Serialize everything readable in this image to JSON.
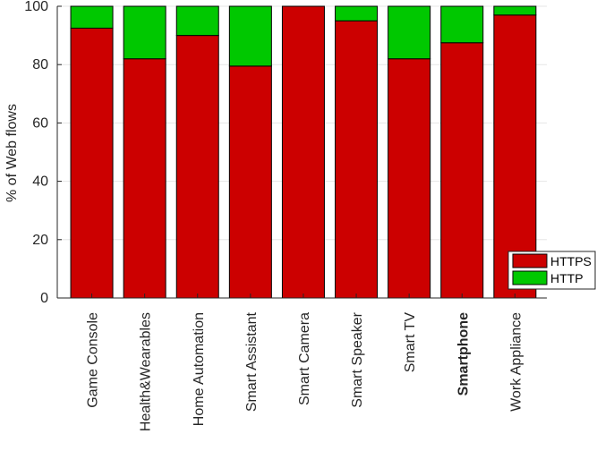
{
  "chart_data": {
    "type": "bar",
    "stacked": true,
    "categories": [
      "Game Console",
      "Health&Wearables",
      "Home Automation",
      "Smart Assistant",
      "Smart Camera",
      "Smart Speaker",
      "Smart TV",
      "Smartphone",
      "Work Appliance"
    ],
    "highlighted_category": "Smartphone",
    "highlight_color": "#e01e1e",
    "series": [
      {
        "name": "HTTPS",
        "color": "#cc0000",
        "values": [
          92.5,
          82,
          90,
          79.5,
          100,
          95,
          82,
          87.5,
          97
        ]
      },
      {
        "name": "HTTP",
        "color": "#00c800",
        "values": [
          7.5,
          18,
          10,
          20.5,
          0,
          5,
          18,
          12.5,
          3
        ]
      }
    ],
    "title": "",
    "xlabel": "",
    "ylabel": "% of Web flows",
    "ylim": [
      0,
      100
    ],
    "yticks": [
      0,
      20,
      40,
      60,
      80,
      100
    ],
    "grid": true,
    "legend_position": "bottom-right"
  }
}
